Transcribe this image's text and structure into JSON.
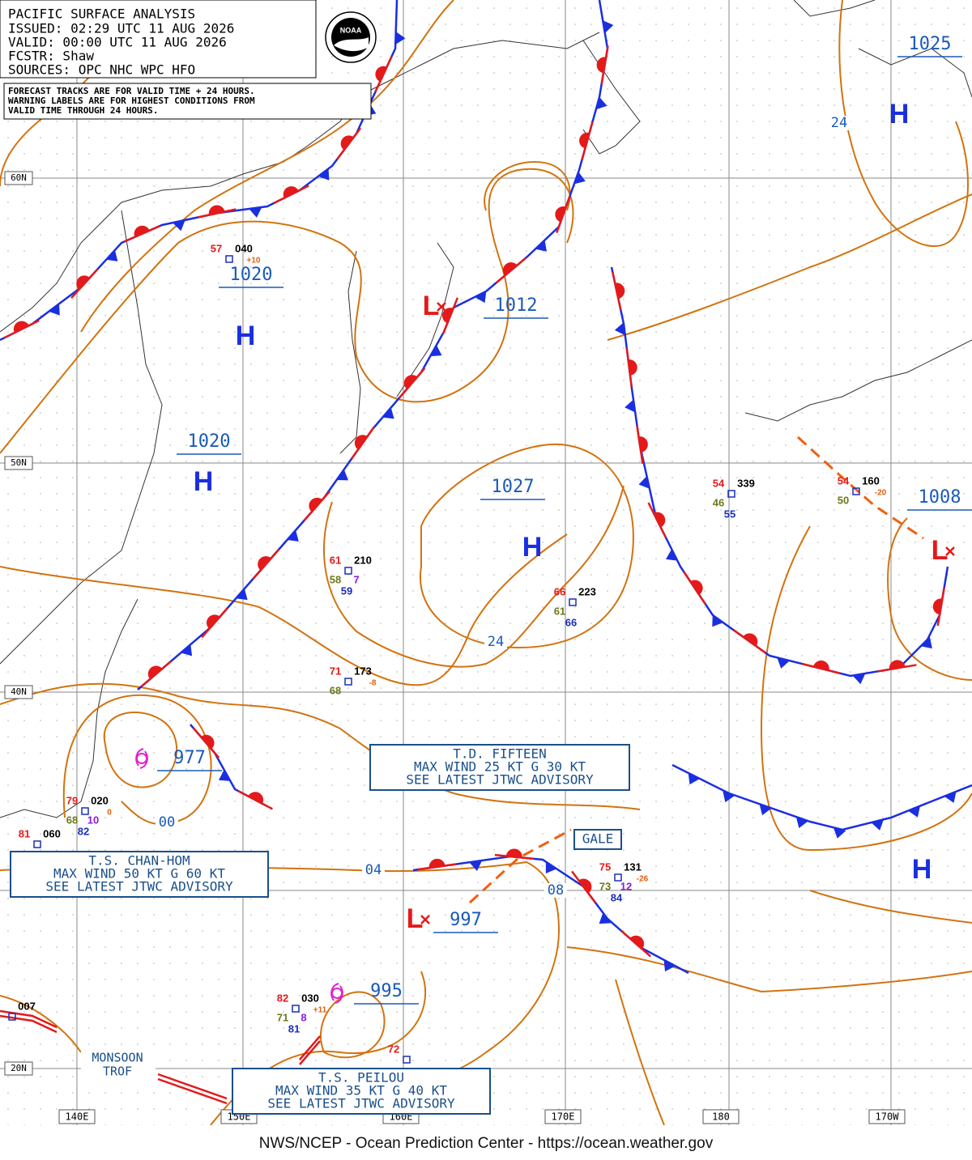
{
  "header": {
    "lines": [
      "PACIFIC SURFACE ANALYSIS",
      "ISSUED:  02:29 UTC 11 AUG 2026",
      "VALID:   00:00 UTC 11 AUG 2026",
      "FCSTR:   Shaw",
      "SOURCES: OPC NHC WPC HFO"
    ],
    "logo": "NOAA",
    "note_lines": [
      "FORECAST TRACKS ARE FOR VALID TIME + 24 HOURS.",
      "WARNING LABELS ARE FOR HIGHEST CONDITIONS FROM",
      "VALID TIME THROUGH 24 HOURS."
    ]
  },
  "lat_labels": [
    "60N",
    "50N",
    "40N",
    "20N"
  ],
  "lon_labels": [
    "140E",
    "150E",
    "160E",
    "170E",
    "180",
    "170W"
  ],
  "pressure_labels": [
    "1025",
    "1020",
    "1012",
    "1020",
    "1027",
    "1008",
    "977",
    "997",
    "995"
  ],
  "highs": [
    "H",
    "H",
    "H",
    "H",
    "H"
  ],
  "lows": [
    "L",
    "L",
    "L"
  ],
  "isobar_labels": [
    "24",
    "24",
    "00",
    "04",
    "08"
  ],
  "advisories": [
    {
      "lines": [
        "T.D. FIFTEEN",
        "MAX WIND 25 KT G 30 KT",
        "SEE LATEST JTWC ADVISORY"
      ]
    },
    {
      "lines": [
        "T.S. CHAN-HOM",
        "MAX WIND 50 KT G 60 KT",
        "SEE LATEST JTWC ADVISORY"
      ]
    },
    {
      "lines": [
        "T.S. PEILOU",
        "MAX WIND 35 KT G 40 KT",
        "SEE LATEST JTWC ADVISORY"
      ]
    }
  ],
  "gale_label": "GALE",
  "trough_label": [
    "MONSOON",
    "TROF"
  ],
  "stations": [
    {
      "air_temp": "57",
      "pressure": "040",
      "tendency": "+10"
    },
    {
      "air_temp": "61",
      "pressure": "210",
      "dewpoint": "58",
      "wave": "7",
      "sea_temp": "59"
    },
    {
      "air_temp": "71",
      "pressure": "173",
      "dewpoint": "68",
      "tendency": "-8"
    },
    {
      "air_temp": "66",
      "pressure": "223",
      "dewpoint": "61",
      "sea_temp": "66"
    },
    {
      "air_temp": "54",
      "pressure": "339",
      "dewpoint": "46",
      "sea_temp": "55"
    },
    {
      "air_temp": "54",
      "pressure": "160",
      "dewpoint": "50",
      "tendency": "-20"
    },
    {
      "air_temp": "79",
      "pressure": "020",
      "dewpoint": "68",
      "wave": "10",
      "sea_temp": "82",
      "tendency": "0"
    },
    {
      "air_temp": "81",
      "pressure": "060"
    },
    {
      "air_temp": "75",
      "pressure": "131",
      "dewpoint": "73",
      "wave": "12",
      "sea_temp": "84",
      "tendency": "-26"
    },
    {
      "air_temp": "82",
      "pressure": "030",
      "dewpoint": "71",
      "wave": "8",
      "sea_temp": "81",
      "tendency": "+11"
    },
    {
      "pressure": "007"
    },
    {
      "air_temp": "72"
    }
  ],
  "footer": "NWS/NCEP - Ocean Prediction Center - https://ocean.weather.gov"
}
